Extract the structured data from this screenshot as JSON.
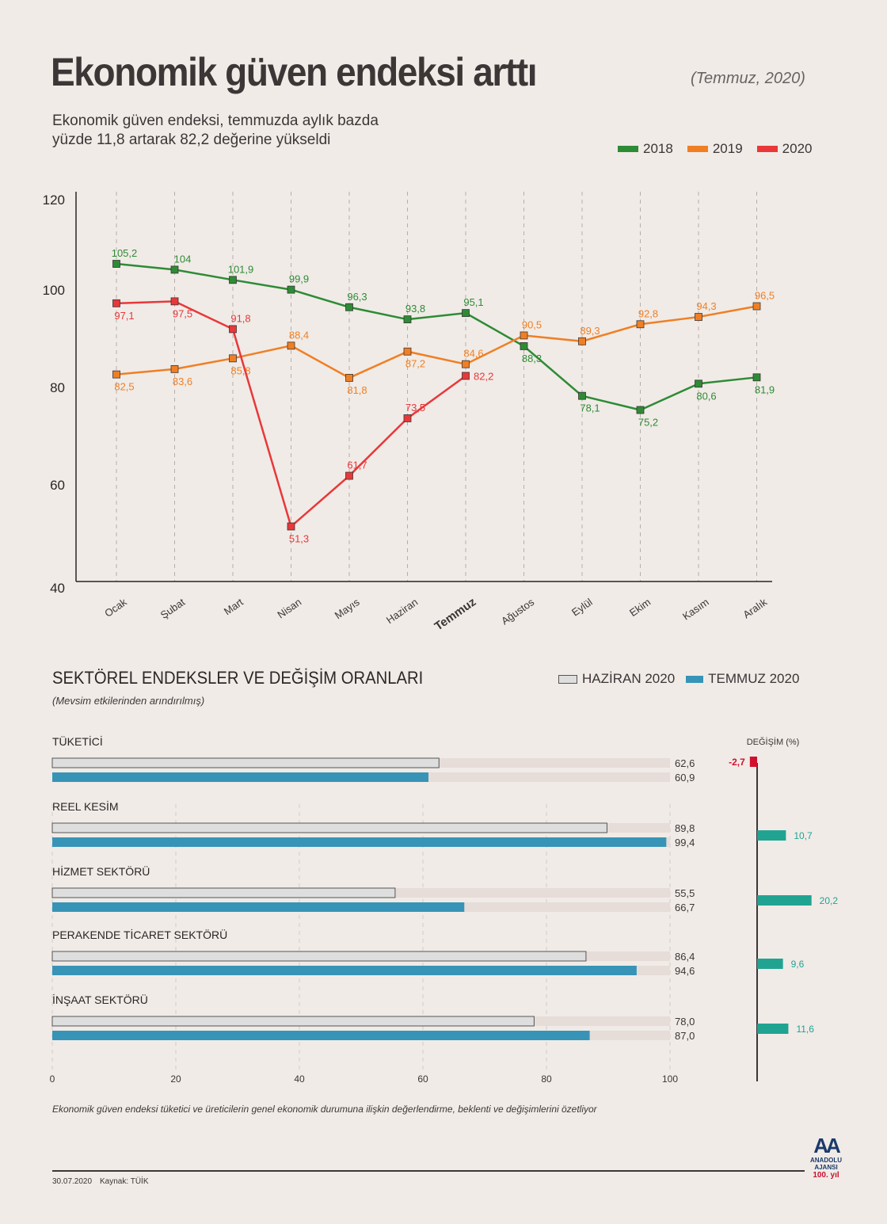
{
  "header": {
    "title": "Ekonomik güven endeksi arttı",
    "period": "(Temmuz, 2020)",
    "subtitle_line1": "Ekonomik güven endeksi, temmuzda aylık bazda",
    "subtitle_line2": "yüzde 11,8 artarak 82,2 değerine yükseldi"
  },
  "colors": {
    "2018": "#2e8b35",
    "2019": "#f07f24",
    "2020": "#e8383a",
    "haziran": "#dedede",
    "temmuz": "#3794b7",
    "change_pos": "#21a392",
    "change_neg": "#d2102d",
    "track": "#e6dcd8"
  },
  "chart_data": [
    {
      "type": "line",
      "title": "Ekonomik güven endeksi",
      "xlabel": "",
      "ylabel": "",
      "ylim": [
        40,
        120
      ],
      "yticks": [
        "120",
        "100",
        "80",
        "60",
        "40"
      ],
      "ytick_values": [
        120,
        100,
        80,
        60,
        40
      ],
      "grid": "vertical dashed",
      "legend_position": "top-right",
      "categories": [
        "Ocak",
        "Şubat",
        "Mart",
        "Nisan",
        "Mayıs",
        "Haziran",
        "Temmuz",
        "Ağustos",
        "Eylül",
        "Ekim",
        "Kasım",
        "Aralık"
      ],
      "highlight_category": "Temmuz",
      "series": [
        {
          "name": "2018",
          "values": [
            105.2,
            104,
            101.9,
            99.9,
            96.3,
            93.8,
            95.1,
            88.3,
            78.1,
            75.2,
            80.6,
            81.9
          ],
          "labels": [
            "105,2",
            "104",
            "101,9",
            "99,9",
            "96,3",
            "93,8",
            "95,1",
            "88,3",
            "78,1",
            "75,2",
            "80,6",
            "81,9"
          ],
          "label_pos": [
            "above",
            "above",
            "above",
            "above",
            "above",
            "above",
            "above",
            "below",
            "below",
            "below",
            "below",
            "below"
          ]
        },
        {
          "name": "2019",
          "values": [
            82.5,
            83.6,
            85.8,
            88.4,
            81.8,
            87.2,
            84.6,
            90.5,
            89.3,
            92.8,
            94.3,
            96.5
          ],
          "labels": [
            "82,5",
            "83,6",
            "85,8",
            "88,4",
            "81,8",
            "87,2",
            "84,6",
            "90,5",
            "89,3",
            "92,8",
            "94,3",
            "96,5"
          ],
          "label_pos": [
            "below",
            "below",
            "below",
            "above",
            "below",
            "below",
            "above",
            "above",
            "above",
            "above",
            "above",
            "above"
          ]
        },
        {
          "name": "2020",
          "values": [
            97.1,
            97.5,
            91.8,
            51.3,
            61.7,
            73.5,
            82.2
          ],
          "labels": [
            "97,1",
            "97,5",
            "91,8",
            "51,3",
            "61,7",
            "73,5",
            "82,2"
          ],
          "label_pos": [
            "below",
            "below",
            "above",
            "below",
            "above",
            "above",
            "right"
          ]
        }
      ]
    },
    {
      "type": "bar",
      "title": "SEKTÖREL ENDEKSLER VE DEĞİŞİM ORANLARI",
      "subtitle": "(Mevsim etkilerinden arındırılmış)",
      "xlim": [
        0,
        100
      ],
      "xticks": [
        "0",
        "20",
        "40",
        "60",
        "80",
        "100"
      ],
      "xtick_values": [
        0,
        20,
        40,
        60,
        80,
        100
      ],
      "legend": [
        "HAZİRAN 2020",
        "TEMMUZ 2020"
      ],
      "legend_position": "top-right",
      "categories": [
        "TÜKETİCİ",
        "REEL KESİM",
        "HİZMET SEKTÖRÜ",
        "PERAKENDE TİCARET SEKTÖRÜ",
        "İNŞAAT SEKTÖRÜ"
      ],
      "series": [
        {
          "name": "HAZİRAN 2020",
          "values": [
            62.6,
            89.8,
            55.5,
            86.4,
            78.0
          ],
          "labels": [
            "62,6",
            "89,8",
            "55,5",
            "86,4",
            "78,0"
          ]
        },
        {
          "name": "TEMMUZ 2020",
          "values": [
            60.9,
            99.4,
            66.7,
            94.6,
            87.0
          ],
          "labels": [
            "60,9",
            "99,4",
            "66,7",
            "94,6",
            "87,0"
          ]
        }
      ],
      "change": {
        "title": "DEĞİŞİM (%)",
        "values": [
          -2.7,
          10.7,
          20.2,
          9.6,
          11.6
        ],
        "labels": [
          "-2,7",
          "10,7",
          "20,2",
          "9,6",
          "11,6"
        ]
      }
    }
  ],
  "footnote": "Ekonomik güven endeksi tüketici ve üreticilerin genel ekonomik durumuna ilişkin değerlendirme, beklenti ve değişimlerini özetliyor",
  "footer": {
    "date": "30.07.2020",
    "source": "Kaynak: TÜİK",
    "logo_mark": "AA",
    "logo_name": "ANADOLU AJANSI",
    "logo_anniversary": "100. yıl"
  }
}
